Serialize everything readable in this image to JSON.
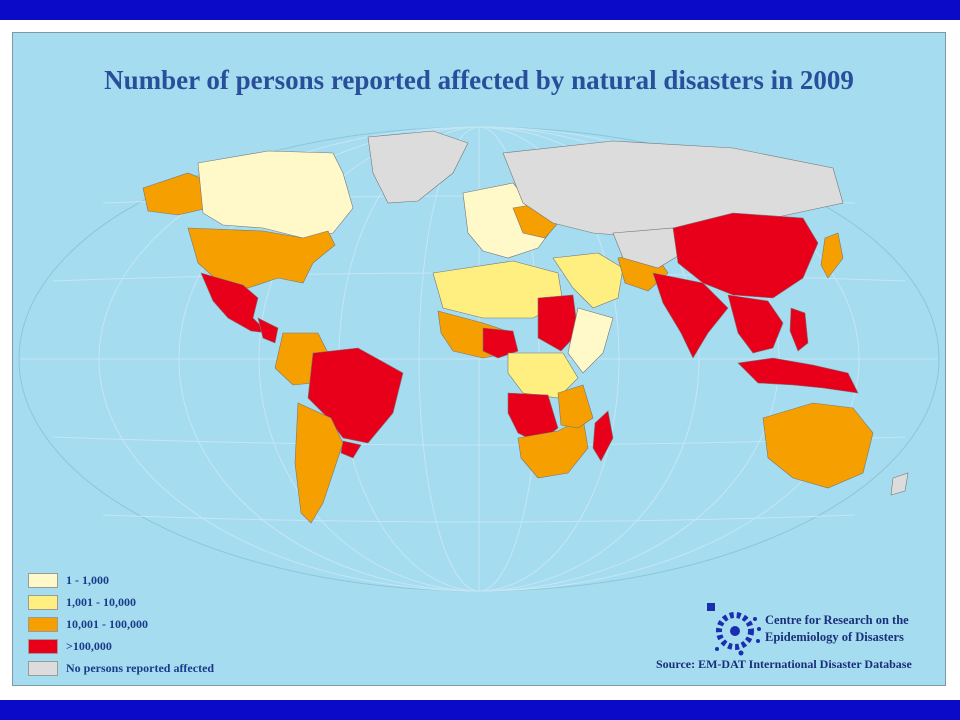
{
  "title": "Number of persons reported affected by natural disasters in 2009",
  "legend": [
    {
      "label": "1 - 1,000",
      "color": "#fff8c8"
    },
    {
      "label": "1,001 - 10,000",
      "color": "#ffee80"
    },
    {
      "label": "10,001 - 100,000",
      "color": "#f5a000"
    },
    {
      "label": ">100,000",
      "color": "#e8001a"
    },
    {
      "label": "No persons reported affected",
      "color": "#dcdcdc"
    }
  ],
  "organization": {
    "line1": "Centre for Research on the",
    "line2": "Epidemiology of Disasters"
  },
  "source": "Source: EM-DAT International Disaster Database",
  "colors": {
    "band": "#0a0ac8",
    "ocean": "#a6dcf0",
    "frame": "#a6dcf0",
    "title": "#2a4f9a",
    "logo": "#1a2fb0"
  },
  "regions": [
    {
      "name": "Canada",
      "category": "1 - 1,000"
    },
    {
      "name": "Alaska",
      "category": "10,001 - 100,000"
    },
    {
      "name": "United States",
      "category": "10,001 - 100,000"
    },
    {
      "name": "Mexico",
      "category": ">100,000"
    },
    {
      "name": "Central America",
      "category": ">100,000"
    },
    {
      "name": "Brazil",
      "category": ">100,000"
    },
    {
      "name": "Argentina",
      "category": "10,001 - 100,000"
    },
    {
      "name": "Greenland",
      "category": "No persons reported affected"
    },
    {
      "name": "Russia",
      "category": "No persons reported affected"
    },
    {
      "name": "China",
      "category": ">100,000"
    },
    {
      "name": "India",
      "category": ">100,000"
    },
    {
      "name": "Southeast Asia",
      "category": ">100,000"
    },
    {
      "name": "Indonesia",
      "category": ">100,000"
    },
    {
      "name": "Philippines",
      "category": ">100,000"
    },
    {
      "name": "Australia",
      "category": "10,001 - 100,000"
    },
    {
      "name": "Sudan",
      "category": ">100,000"
    },
    {
      "name": "Madagascar",
      "category": ">100,000"
    },
    {
      "name": "Angola",
      "category": ">100,000"
    },
    {
      "name": "Southern Africa",
      "category": "10,001 - 100,000"
    },
    {
      "name": "Japan",
      "category": "10,001 - 100,000"
    }
  ]
}
